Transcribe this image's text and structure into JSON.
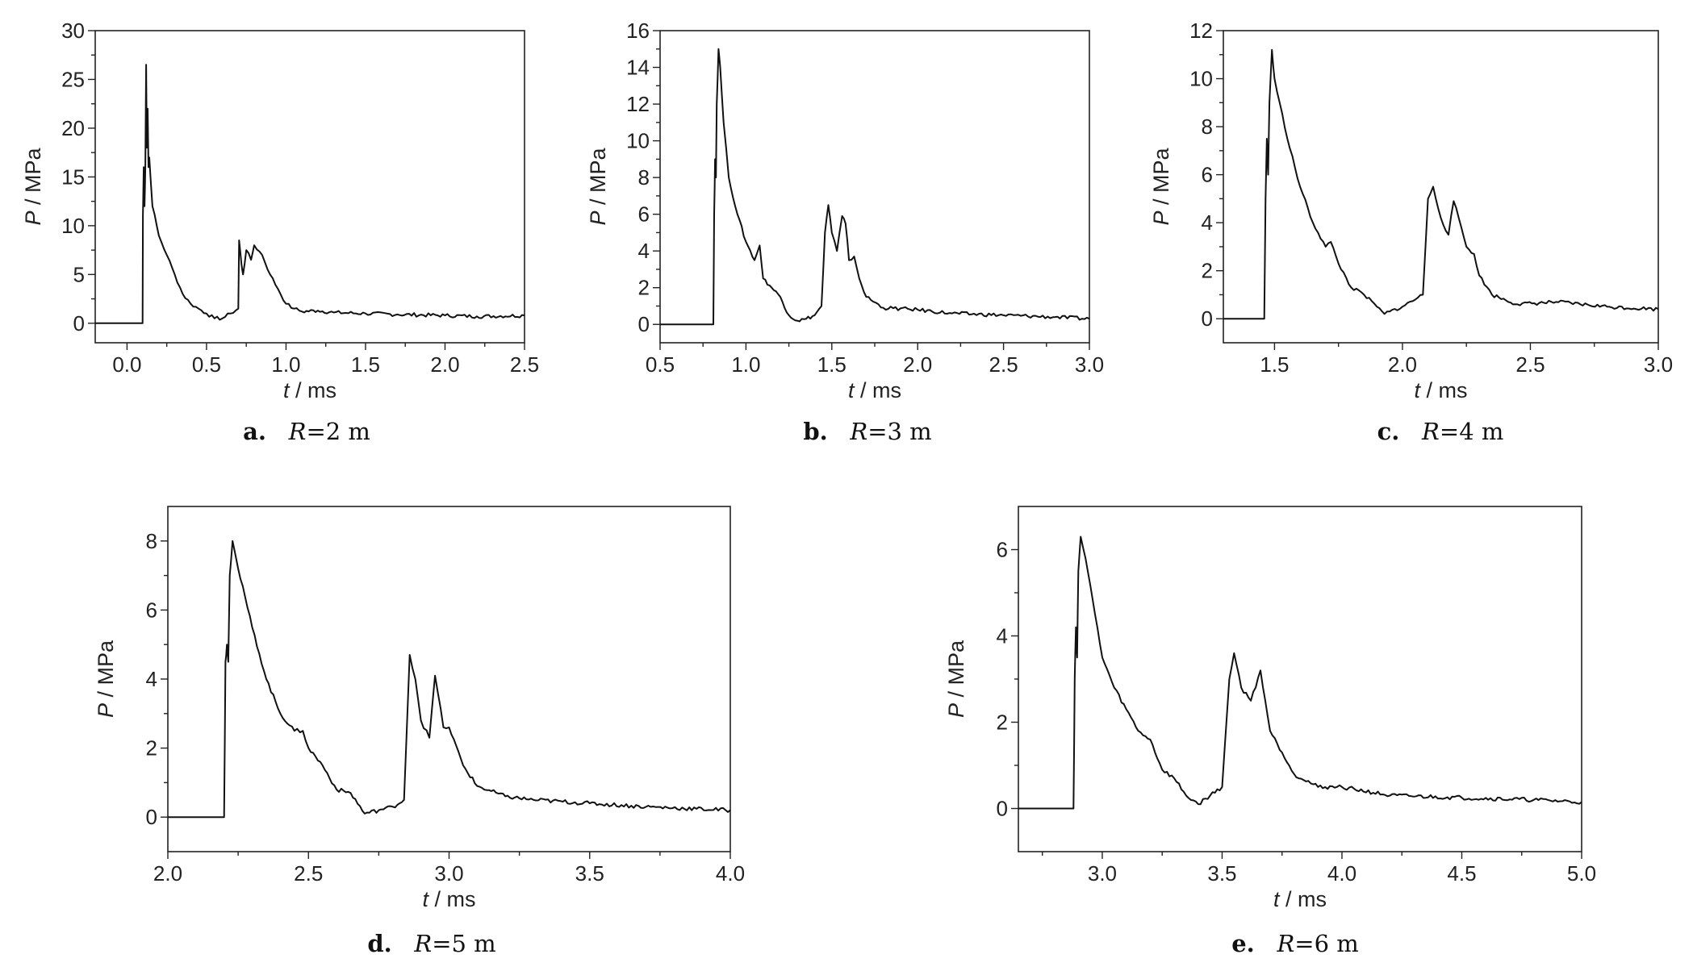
{
  "figure": {
    "ylabel_var": "P",
    "ylabel_unit": " / MPa",
    "xlabel_var": "t",
    "xlabel_unit": " / ms"
  },
  "chart_data": [
    {
      "id": "a",
      "type": "line",
      "caption_letter": "a.",
      "caption_r": "R",
      "caption_value": "=2  m",
      "xlim": [
        -0.2,
        2.5
      ],
      "ylim": [
        -2,
        30
      ],
      "xticks": [
        0.0,
        0.5,
        1.0,
        1.5,
        2.0,
        2.5
      ],
      "xtick_labels": [
        "0.0",
        "0.5",
        "1.0",
        "1.5",
        "2.0",
        "2.5"
      ],
      "yticks": [
        0,
        5,
        10,
        15,
        20,
        25,
        30
      ],
      "ytick_labels": [
        "0",
        "5",
        "10",
        "15",
        "20",
        "25",
        "30"
      ],
      "x": [
        -0.2,
        0.098,
        0.1,
        0.105,
        0.11,
        0.115,
        0.12,
        0.125,
        0.13,
        0.135,
        0.14,
        0.16,
        0.2,
        0.25,
        0.3,
        0.35,
        0.4,
        0.45,
        0.5,
        0.55,
        0.6,
        0.65,
        0.7,
        0.705,
        0.72,
        0.73,
        0.75,
        0.78,
        0.8,
        0.85,
        0.9,
        0.95,
        1.0,
        1.05,
        1.1,
        1.2,
        1.3,
        1.5,
        1.7,
        2.0,
        2.2,
        2.5
      ],
      "y": [
        0,
        0,
        11,
        16,
        12,
        16,
        26.5,
        18,
        22,
        16,
        17,
        12,
        9,
        7,
        5,
        3,
        2,
        1.5,
        1,
        0.5,
        0.5,
        1,
        1.5,
        8.5,
        6,
        5,
        7.5,
        6.5,
        8,
        7,
        5,
        3.5,
        2,
        1.5,
        1.2,
        1.3,
        1.1,
        1.0,
        0.9,
        0.8,
        0.7,
        0.8
      ]
    },
    {
      "id": "b",
      "type": "line",
      "caption_letter": "b.",
      "caption_r": "R",
      "caption_value": "=3  m",
      "xlim": [
        0.5,
        3.0
      ],
      "ylim": [
        -1,
        16
      ],
      "xticks": [
        0.5,
        1.0,
        1.5,
        2.0,
        2.5,
        3.0
      ],
      "xtick_labels": [
        "0.5",
        "1.0",
        "1.5",
        "2.0",
        "2.5",
        "3.0"
      ],
      "yticks": [
        0,
        2,
        4,
        6,
        8,
        10,
        12,
        14,
        16
      ],
      "ytick_labels": [
        "0",
        "2",
        "4",
        "6",
        "8",
        "10",
        "12",
        "14",
        "16"
      ],
      "x": [
        0.5,
        0.81,
        0.815,
        0.82,
        0.825,
        0.83,
        0.84,
        0.85,
        0.87,
        0.9,
        0.95,
        1.0,
        1.05,
        1.08,
        1.1,
        1.15,
        1.2,
        1.25,
        1.3,
        1.35,
        1.4,
        1.44,
        1.46,
        1.48,
        1.5,
        1.53,
        1.56,
        1.58,
        1.6,
        1.63,
        1.66,
        1.7,
        1.8,
        2.0,
        2.2,
        2.5,
        2.8,
        3.0
      ],
      "y": [
        0,
        0,
        6,
        9,
        8,
        12,
        15,
        14,
        11,
        8,
        6,
        4.5,
        3.5,
        4.3,
        2.5,
        2,
        1.5,
        0.5,
        0.2,
        0.3,
        0.5,
        1,
        5,
        6.5,
        5,
        4,
        5.9,
        5.5,
        3.5,
        3.7,
        2.5,
        1.5,
        0.9,
        0.8,
        0.6,
        0.5,
        0.4,
        0.3
      ]
    },
    {
      "id": "c",
      "type": "line",
      "caption_letter": "c.",
      "caption_r": "R",
      "caption_value": "=4  m",
      "xlim": [
        1.3,
        3.0
      ],
      "ylim": [
        -1,
        12
      ],
      "xticks": [
        1.5,
        2.0,
        2.5,
        3.0
      ],
      "xtick_labels": [
        "1.5",
        "2.0",
        "2.5",
        "3.0"
      ],
      "yticks": [
        0,
        2,
        4,
        6,
        8,
        10,
        12
      ],
      "ytick_labels": [
        "0",
        "2",
        "4",
        "6",
        "8",
        "10",
        "12"
      ],
      "x": [
        1.3,
        1.46,
        1.465,
        1.47,
        1.475,
        1.48,
        1.49,
        1.5,
        1.52,
        1.55,
        1.6,
        1.65,
        1.7,
        1.72,
        1.75,
        1.8,
        1.85,
        1.9,
        1.93,
        1.95,
        2.0,
        2.08,
        2.1,
        2.12,
        2.15,
        2.18,
        2.2,
        2.22,
        2.25,
        2.28,
        2.3,
        2.35,
        2.45,
        2.6,
        2.8,
        3.0
      ],
      "y": [
        0,
        0,
        5,
        7.5,
        6,
        9,
        11.2,
        10,
        9,
        7.5,
        5.5,
        4,
        3,
        3.2,
        2.3,
        1.3,
        1,
        0.5,
        0.2,
        0.3,
        0.5,
        1,
        5,
        5.5,
        4.2,
        3.5,
        4.9,
        4.2,
        3,
        2.7,
        1.8,
        1,
        0.6,
        0.7,
        0.5,
        0.4
      ]
    },
    {
      "id": "d",
      "type": "line",
      "caption_letter": "d.",
      "caption_r": "R",
      "caption_value": "=5  m",
      "xlim": [
        2.0,
        4.0
      ],
      "ylim": [
        -1,
        9
      ],
      "xticks": [
        2.0,
        2.5,
        3.0,
        3.5,
        4.0
      ],
      "xtick_labels": [
        "2.0",
        "2.5",
        "3.0",
        "3.5",
        "4.0"
      ],
      "yticks": [
        0,
        2,
        4,
        6,
        8
      ],
      "ytick_labels": [
        "0",
        "2",
        "4",
        "6",
        "8"
      ],
      "x": [
        2.0,
        2.2,
        2.205,
        2.21,
        2.215,
        2.22,
        2.23,
        2.25,
        2.3,
        2.35,
        2.4,
        2.45,
        2.48,
        2.5,
        2.55,
        2.6,
        2.65,
        2.7,
        2.75,
        2.8,
        2.84,
        2.86,
        2.88,
        2.9,
        2.93,
        2.95,
        2.98,
        3.0,
        3.05,
        3.1,
        3.2,
        3.3,
        3.5,
        3.7,
        4.0
      ],
      "y": [
        0,
        0,
        4.5,
        5,
        4.5,
        7,
        8,
        7.2,
        5.5,
        4,
        3,
        2.5,
        2.5,
        2,
        1.5,
        0.8,
        0.7,
        0.1,
        0.2,
        0.3,
        0.5,
        4.7,
        4,
        2.8,
        2.3,
        4.1,
        2.6,
        2.6,
        1.5,
        0.9,
        0.6,
        0.5,
        0.4,
        0.3,
        0.2
      ]
    },
    {
      "id": "e",
      "type": "line",
      "caption_letter": "e.",
      "caption_r": "R",
      "caption_value": "=6  m",
      "xlim": [
        2.65,
        5.0
      ],
      "ylim": [
        -1,
        7
      ],
      "xticks": [
        3.0,
        3.5,
        4.0,
        4.5,
        5.0
      ],
      "xtick_labels": [
        "3.0",
        "3.5",
        "4.0",
        "4.5",
        "5.0"
      ],
      "yticks": [
        0,
        2,
        4,
        6
      ],
      "ytick_labels": [
        "0",
        "2",
        "4",
        "6"
      ],
      "x": [
        2.65,
        2.88,
        2.885,
        2.89,
        2.895,
        2.9,
        2.91,
        2.93,
        2.97,
        3.0,
        3.05,
        3.1,
        3.15,
        3.2,
        3.25,
        3.3,
        3.35,
        3.4,
        3.45,
        3.5,
        3.53,
        3.55,
        3.58,
        3.62,
        3.66,
        3.7,
        3.75,
        3.8,
        3.9,
        4.0,
        4.2,
        4.5,
        4.8,
        5.0
      ],
      "y": [
        0,
        0,
        3,
        4.2,
        3.5,
        5.5,
        6.3,
        5.8,
        4.5,
        3.5,
        2.8,
        2.3,
        1.8,
        1.6,
        0.9,
        0.7,
        0.3,
        0.1,
        0.3,
        0.5,
        3,
        3.6,
        2.8,
        2.5,
        3.2,
        1.8,
        1.3,
        0.8,
        0.5,
        0.5,
        0.3,
        0.25,
        0.2,
        0.15
      ]
    }
  ]
}
